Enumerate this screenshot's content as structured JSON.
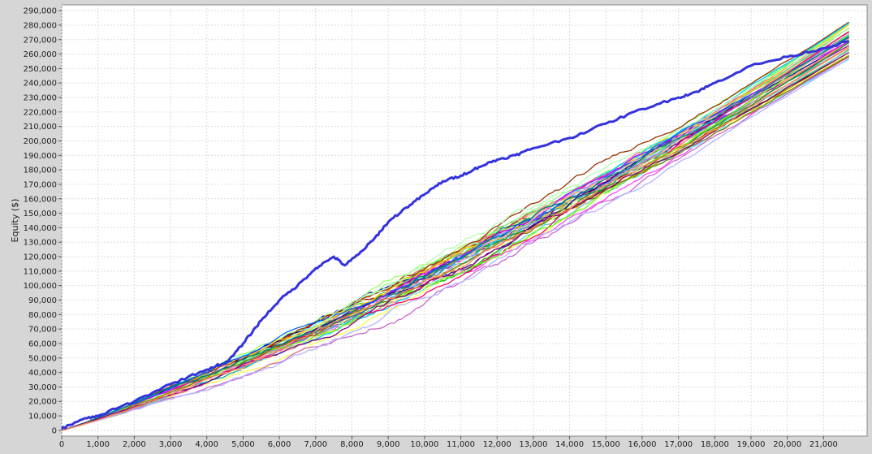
{
  "chart_data": {
    "type": "line",
    "title": "",
    "xlabel": "",
    "ylabel": "Equity ($)",
    "xlim": [
      0,
      22200
    ],
    "ylim": [
      -4000,
      294000
    ],
    "grid": true,
    "legend": "none",
    "x_ticks": [
      "0",
      "1,000",
      "2,000",
      "3,000",
      "4,000",
      "5,000",
      "6,000",
      "7,000",
      "8,000",
      "9,000",
      "10,000",
      "11,000",
      "12,000",
      "13,000",
      "14,000",
      "15,000",
      "16,000",
      "17,000",
      "18,000",
      "19,000",
      "20,000",
      "21,000"
    ],
    "y_ticks": [
      "0",
      "10,000",
      "20,000",
      "30,000",
      "40,000",
      "50,000",
      "60,000",
      "70,000",
      "80,000",
      "90,000",
      "100,000",
      "110,000",
      "120,000",
      "130,000",
      "140,000",
      "150,000",
      "160,000",
      "170,000",
      "180,000",
      "190,000",
      "200,000",
      "210,000",
      "220,000",
      "230,000",
      "240,000",
      "250,000",
      "260,000",
      "270,000",
      "280,000",
      "290,000"
    ],
    "highlight_series": {
      "color": "#3333dd",
      "x": [
        0,
        500,
        1000,
        2000,
        3000,
        4000,
        4600,
        5000,
        5500,
        6000,
        6500,
        7000,
        7500,
        7800,
        8200,
        8600,
        9000,
        9500,
        10000,
        10500,
        11000,
        11500,
        12000,
        12500,
        13000,
        14000,
        15000,
        16000,
        17000,
        17500,
        18000,
        19000,
        20000,
        21000,
        21700
      ],
      "y": [
        1000,
        7000,
        10000,
        20000,
        32000,
        42000,
        48000,
        60000,
        76000,
        90000,
        100000,
        112000,
        120000,
        114000,
        122000,
        132000,
        144000,
        154000,
        163000,
        172000,
        176000,
        182000,
        187000,
        190000,
        195000,
        202000,
        212000,
        222000,
        230000,
        234000,
        240000,
        252000,
        258000,
        264000,
        269000
      ]
    },
    "simulation_series": {
      "count": 40,
      "start": [
        0,
        0
      ],
      "end_x": 21700,
      "end_y_range": [
        256000,
        283000
      ],
      "colors": [
        "#ff4444",
        "#44dd44",
        "#ffff44",
        "#ff44ff",
        "#44ffff",
        "#ff9933",
        "#aa0000",
        "#00aa00",
        "#0000aa",
        "#aaaa00",
        "#aa00aa",
        "#00aaaa",
        "#ff8888",
        "#88ff88",
        "#8888ff",
        "#ffaa88",
        "#66cc66",
        "#cc66cc",
        "#66cccc",
        "#cccc66",
        "#ff6699",
        "#99ff66",
        "#6699ff",
        "#993300",
        "#009933",
        "#330099",
        "#ffcc00",
        "#00ccff",
        "#cc00ff",
        "#ff0066",
        "#66ff00",
        "#0066ff",
        "#ffb3b3",
        "#b3ffb3",
        "#ffffb3",
        "#b3b3ff",
        "#808000",
        "#008080",
        "#800080",
        "#ff7f50"
      ]
    }
  }
}
